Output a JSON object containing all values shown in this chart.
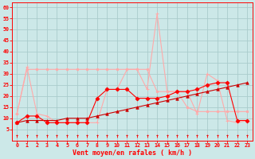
{
  "x": [
    0,
    1,
    2,
    3,
    4,
    5,
    6,
    7,
    8,
    9,
    10,
    11,
    12,
    13,
    14,
    15,
    16,
    17,
    18,
    19,
    20,
    21,
    22,
    23
  ],
  "wind_gust": [
    12,
    33,
    12,
    11,
    8,
    8,
    8,
    8,
    8,
    23,
    23,
    32,
    32,
    23,
    57,
    22,
    22,
    22,
    12,
    30,
    27,
    9,
    8,
    9
  ],
  "wind_plateau": [
    12,
    32,
    32,
    32,
    32,
    32,
    32,
    32,
    32,
    32,
    32,
    32,
    32,
    32,
    22,
    22,
    22,
    15,
    13,
    13,
    13,
    13,
    13,
    13
  ],
  "wind_avg": [
    8,
    11,
    11,
    8,
    8,
    8,
    8,
    8,
    19,
    23,
    23,
    23,
    19,
    19,
    19,
    20,
    22,
    22,
    23,
    25,
    26,
    26,
    9,
    9
  ],
  "wind_trend": [
    8,
    9,
    9,
    9,
    9,
    10,
    10,
    10,
    11,
    12,
    13,
    14,
    15,
    16,
    17,
    18,
    19,
    20,
    21,
    22,
    23,
    24,
    25,
    26
  ],
  "wind_dir_y": [
    2,
    2,
    2,
    2,
    2,
    2,
    2,
    2,
    2,
    2,
    2,
    2,
    2,
    2,
    2,
    2,
    2,
    2,
    2,
    2,
    2,
    2,
    2,
    2
  ],
  "xlabel": "Vent moyen/en rafales ( km/h )",
  "yticks": [
    5,
    10,
    15,
    20,
    25,
    30,
    35,
    40,
    45,
    50,
    55,
    60
  ],
  "xticks": [
    0,
    1,
    2,
    3,
    4,
    5,
    6,
    7,
    8,
    9,
    10,
    11,
    12,
    13,
    14,
    15,
    16,
    17,
    18,
    19,
    20,
    21,
    22,
    23
  ],
  "bg_color": "#cce8e8",
  "grid_color": "#aacccc",
  "color_gust": "#ffaaaa",
  "color_plateau": "#ffaaaa",
  "color_avg": "#ff0000",
  "color_trend": "#cc0000",
  "linewidth": 0.8,
  "marker_size": 2.5
}
